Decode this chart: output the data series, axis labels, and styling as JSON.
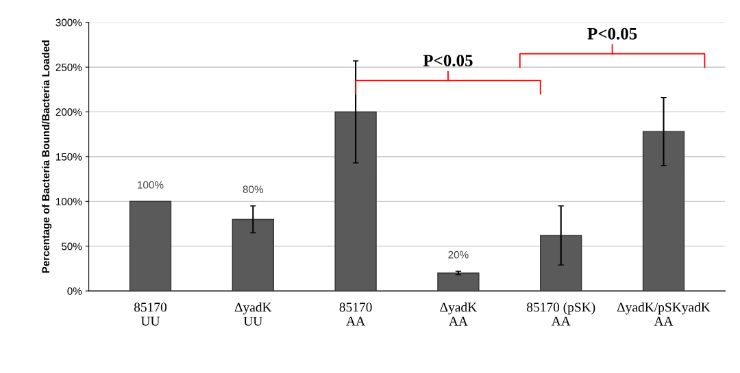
{
  "chart_data": {
    "type": "bar",
    "ylabel": "Percentage of Bacteria Bound/Bacteria Loaded",
    "categories": [
      "85170\nUU",
      "ΔyadK\nUU",
      "85170\nAA",
      "ΔyadK\nAA",
      "85170 (pSK)\nAA",
      "ΔyadK/pSKyadK\nAA"
    ],
    "values": [
      100,
      80,
      200,
      20,
      62,
      178
    ],
    "errors": [
      null,
      15,
      57,
      2,
      33,
      38
    ],
    "value_labels": [
      "100%",
      "80%",
      null,
      "20%",
      null,
      null
    ],
    "color": "#5a5a5a",
    "ylim": [
      0,
      300
    ],
    "yticks": [
      {
        "value": 0,
        "label": "0%"
      },
      {
        "value": 50,
        "label": "50%"
      },
      {
        "value": 100,
        "label": "100%"
      },
      {
        "value": 150,
        "label": "150%"
      },
      {
        "value": 200,
        "label": "200%"
      },
      {
        "value": 250,
        "label": "250%"
      },
      {
        "value": 300,
        "label": "300%"
      }
    ],
    "grid": "y",
    "annotations": [
      "P<0.05",
      "P<0.05"
    ]
  }
}
